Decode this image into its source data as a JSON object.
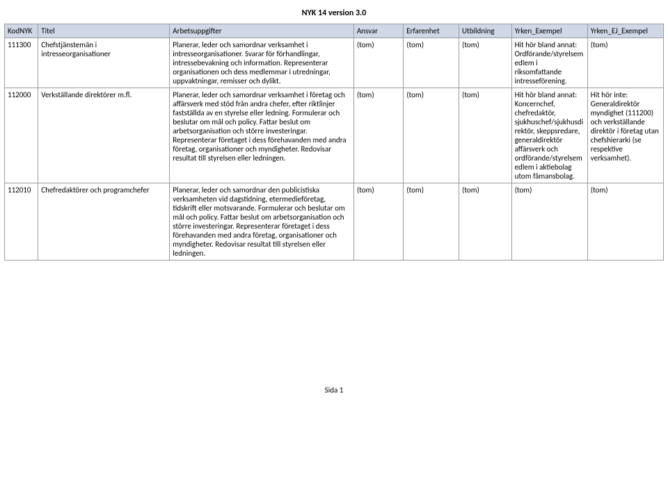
{
  "doc_title": "NYK 14 version 3.0",
  "page_label": "Sida 1",
  "columns": [
    "KodNYK",
    "Titel",
    "Arbetsuppgifter",
    "Ansvar",
    "Erfarenhet",
    "Utbildning",
    "Yrken_Exempel",
    "Yrken_EJ_Exempel"
  ],
  "rows": [
    {
      "kod": "111300",
      "titel": "Chefstjänstemän i intresseorganisationer",
      "arb": "Planerar, leder och samordnar verksamhet i intresseorganisationer. Svarar för förhandlingar, intressebevakning och information. Representerar organisationen och dess medlemmar i utredningar, uppvaktningar, remisser och dylikt.",
      "ansvar": "(tom)",
      "erf": "(tom)",
      "utb": "(tom)",
      "ye": "Hit hör bland annat: Ordförande/styrelsemedlem i riksomfattande intresseförening.",
      "yej": "(tom)"
    },
    {
      "kod": "112000",
      "titel": "Verkställande direktörer m.fl.",
      "arb": "Planerar, leder och samordnar verksamhet i företag och affärsverk med stöd från andra chefer, efter riktlinjer fastställda av en styrelse eller ledning. Formulerar och beslutar om mål och policy. Fattar beslut om arbetsorganisation och större investeringar. Representerar företaget i dess förehavanden med andra företag, organisationer och myndigheter. Redovisar resultat till styrelsen eller ledningen.",
      "ansvar": "(tom)",
      "erf": "(tom)",
      "utb": "(tom)",
      "ye": "Hit hör bland annat: Koncernchef, chefredaktör, sjukhuschef/sjukhusdirektör, skeppsredare, generaldirektör affärsverk och ordförande/styrelsemedlem i aktiebolag utom fåmansbolag.",
      "yej": "Hit hör inte: Generaldirektör myndighet (111200) och verkställande direktör i företag utan chefshierarki (se respektive verksamhet)."
    },
    {
      "kod": "112010",
      "titel": "Chefredaktörer och programchefer",
      "arb": "Planerar, leder och samordnar den publicistiska verksamheten vid dagstidning, etermedieföretag, tidskrift eller motsvarande. Formulerar och beslutar om mål och policy. Fattar beslut om arbetsorganisation och större investeringar. Representerar företaget i dess förehavanden med andra företag, organisationer och myndigheter. Redovisar resultat till styrelsen eller ledningen.",
      "ansvar": "(tom)",
      "erf": "(tom)",
      "utb": "(tom)",
      "ye": "(tom)",
      "yej": "(tom)"
    }
  ]
}
